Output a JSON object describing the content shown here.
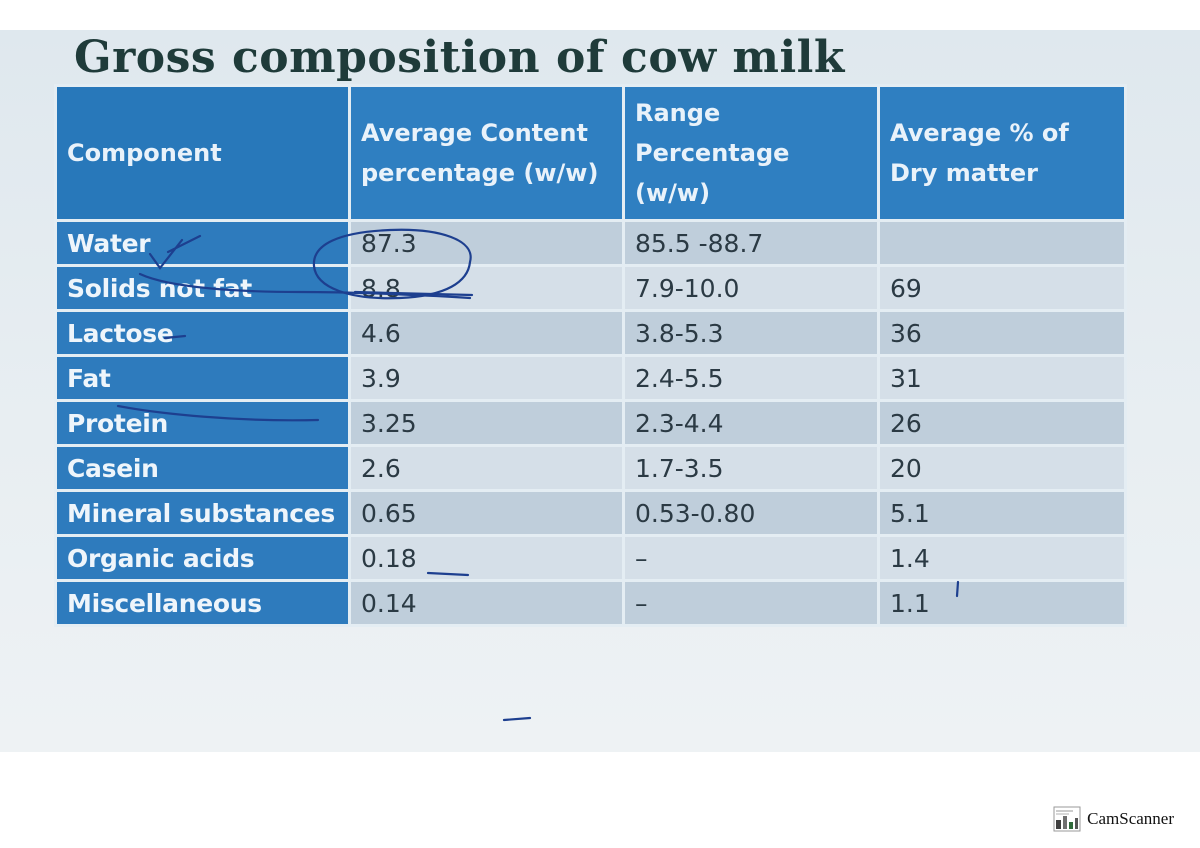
{
  "slide": {
    "title": "Gross composition of cow milk"
  },
  "table": {
    "headers": [
      "Component",
      "Average Content percentage (w/w)",
      "Range Percentage (w/w)",
      "Average % of Dry matter"
    ],
    "rows": [
      {
        "component": "Water",
        "average": "87.3",
        "range": "85.5 -88.7",
        "dry": ""
      },
      {
        "component": "Solids not fat",
        "average": "8.8",
        "range": "7.9-10.0",
        "dry": "69"
      },
      {
        "component": "Lactose",
        "average": "4.6",
        "range": "3.8-5.3",
        "dry": "36"
      },
      {
        "component": "Fat",
        "average": "3.9",
        "range": "2.4-5.5",
        "dry": "31"
      },
      {
        "component": "Protein",
        "average": "3.25",
        "range": "2.3-4.4",
        "dry": "26"
      },
      {
        "component": "Casein",
        "average": "2.6",
        "range": "1.7-3.5",
        "dry": "20"
      },
      {
        "component": "Mineral substances",
        "average": "0.65",
        "range": "0.53-0.80",
        "dry": "5.1"
      },
      {
        "component": "Organic acids",
        "average": "0.18",
        "range": "–",
        "dry": "1.4"
      },
      {
        "component": "Miscellaneous",
        "average": "0.14",
        "range": "–",
        "dry": "1.1"
      }
    ]
  },
  "footer": {
    "app_name": "CamScanner"
  },
  "colors": {
    "header_blue": "#2f7fc1",
    "label_blue": "#2e7bbd",
    "ink_blue": "#1d3f8f",
    "title_color": "#1f3b3a"
  }
}
